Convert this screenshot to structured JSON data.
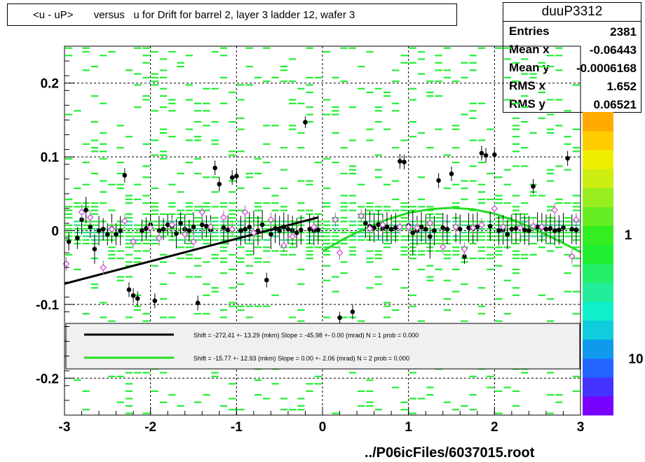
{
  "title": "<u - uP>       versus   u for Drift for barrel 2, layer 3 ladder 12, wafer 3",
  "stats": {
    "name": "duuP3312",
    "rows": [
      {
        "label": "Entries",
        "value": "2381"
      },
      {
        "label": "Mean x",
        "value": "-0.06443"
      },
      {
        "label": "Mean y",
        "value": "-0.0006168"
      },
      {
        "label": "RMS x",
        "value": "1.652"
      },
      {
        "label": "RMS y",
        "value": "0.06521"
      }
    ]
  },
  "footer": "../P06icFiles/6037015.root",
  "colors": {
    "histogram": "#00ee00",
    "fit_black": "#000000",
    "fit_green": "#22dd22",
    "profile_marker": "#000000",
    "open_marker": "#cc44cc"
  },
  "chart_data": {
    "type": "scatter",
    "title": "<u - uP>       versus   u for Drift for barrel 2, layer 3 ladder 12, wafer 3",
    "xlabel": "",
    "ylabel": "",
    "xlim": [
      -3,
      3
    ],
    "ylim": [
      -0.25,
      0.25
    ],
    "x_ticks": [
      "-3",
      "-2",
      "-1",
      "0",
      "1",
      "2",
      "3"
    ],
    "y_ticks": [
      "-0.2",
      "-0.1",
      "0",
      "0.1",
      "0.2"
    ],
    "grid": true,
    "colorbar": {
      "scale": "log",
      "labels": [
        "1",
        "10"
      ]
    },
    "colorbar_stops": [
      "#7700ff",
      "#4433ff",
      "#2266ff",
      "#1199ee",
      "#11ccdd",
      "#11eecc",
      "#22ee99",
      "#22ee66",
      "#22ee33",
      "#33ee22",
      "#66ee22",
      "#99ee22",
      "#ccee11",
      "#eeee00",
      "#ffcc00",
      "#ffaa00"
    ],
    "legend": [
      {
        "text": "Shift =  -272.41 +- 13.29 (mkm) Slope =   -45.98 +- 0.00 (mrad)  N = 1 prob = 0.000",
        "color": "#000000"
      },
      {
        "text": "Shift =   -15.77 +- 12.93 (mkm) Slope =     0.00 +- 2.06 (mrad)  N = 2 prob = 0.000",
        "color": "#22dd22"
      }
    ],
    "fit_lines": [
      {
        "name": "N = 1",
        "x": [
          -3.0,
          -0.05
        ],
        "y": [
          -0.072,
          0.018
        ]
      },
      {
        "name": "N = 2",
        "x": [
          0.0,
          0.25,
          0.5,
          0.75,
          1.0,
          1.25,
          1.5,
          1.75,
          2.0,
          2.25,
          2.5,
          2.75,
          3.0
        ],
        "y": [
          -0.028,
          -0.011,
          0.003,
          0.015,
          0.024,
          0.029,
          0.031,
          0.029,
          0.023,
          0.013,
          0.0,
          -0.014,
          -0.029
        ]
      }
    ],
    "profile_points": {
      "x": [
        -2.95,
        -2.85,
        -2.8,
        -2.75,
        -2.7,
        -2.65,
        -2.6,
        -2.55,
        -2.5,
        -2.45,
        -2.4,
        -2.35,
        -2.3,
        -2.25,
        -2.2,
        -2.15,
        -2.1,
        -2.05,
        -2.0,
        -1.95,
        -1.9,
        -1.85,
        -1.8,
        -1.75,
        -1.7,
        -1.65,
        -1.6,
        -1.55,
        -1.5,
        -1.45,
        -1.4,
        -1.35,
        -1.3,
        -1.25,
        -1.2,
        -1.15,
        -1.1,
        -1.05,
        -1.0,
        -0.95,
        -0.9,
        -0.85,
        -0.8,
        -0.75,
        -0.7,
        -0.65,
        -0.6,
        -0.55,
        -0.5,
        -0.45,
        -0.4,
        -0.35,
        -0.3,
        -0.25,
        -0.2,
        -0.15,
        -0.1,
        -0.05,
        0.2,
        0.35,
        0.5,
        0.55,
        0.6,
        0.65,
        0.7,
        0.75,
        0.8,
        0.85,
        0.9,
        0.95,
        1.0,
        1.05,
        1.1,
        1.15,
        1.2,
        1.25,
        1.3,
        1.35,
        1.4,
        1.45,
        1.5,
        1.55,
        1.6,
        1.65,
        1.7,
        1.75,
        1.8,
        1.85,
        1.9,
        1.95,
        2.0,
        2.05,
        2.1,
        2.15,
        2.2,
        2.25,
        2.3,
        2.35,
        2.4,
        2.45,
        2.5,
        2.55,
        2.6,
        2.65,
        2.7,
        2.75,
        2.8,
        2.85,
        2.9,
        2.95
      ],
      "y": [
        -0.015,
        -0.01,
        0.015,
        0.028,
        0.005,
        -0.025,
        0.0,
        0.002,
        -0.005,
        0.003,
        -0.005,
        0.0,
        0.075,
        -0.08,
        -0.088,
        -0.092,
        0.0,
        0.003,
        0.008,
        -0.095,
        0.0,
        0.002,
        0.008,
        0.006,
        -0.004,
        0.01,
        0.002,
        0.0,
        0.005,
        -0.098,
        0.008,
        0.006,
        0.001,
        0.085,
        0.063,
        0.004,
        0.001,
        0.072,
        0.074,
        0.0,
        0.002,
        0.005,
        -0.003,
        0.0,
        0.008,
        -0.067,
        -0.005,
        0.003,
        0.0,
        0.005,
        0.002,
        0.0,
        -0.003,
        0.001,
        0.147,
        0.002,
        0.0,
        0.001,
        -0.118,
        -0.11,
        0.01,
        0.006,
        0.004,
        0.008,
        0.003,
        0.005,
        0.002,
        0.004,
        0.094,
        0.093,
        0.007,
        -0.003,
        0.0,
        0.005,
        0.002,
        -0.008,
        0.0,
        0.068,
        0.004,
        0.002,
        0.077,
        0.004,
        0.002,
        -0.035,
        0.004,
        0.003,
        0.005,
        0.105,
        0.102,
        0.006,
        0.103,
        0.0,
        0.001,
        -0.005,
        0.002,
        0.003,
        0.004,
        0.001,
        0.0,
        0.06,
        0.005,
        0.004,
        0.002,
        0.003,
        0.0,
        0.001,
        0.004,
        0.098,
        0.002,
        0.001
      ],
      "err": [
        0.012,
        0.015,
        0.02,
        0.018,
        0.015,
        0.02,
        0.02,
        0.015,
        0.015,
        0.02,
        0.015,
        0.02,
        0.01,
        0.01,
        0.01,
        0.01,
        0.015,
        0.015,
        0.015,
        0.01,
        0.02,
        0.015,
        0.015,
        0.015,
        0.02,
        0.015,
        0.02,
        0.015,
        0.02,
        0.01,
        0.02,
        0.015,
        0.02,
        0.01,
        0.01,
        0.02,
        0.02,
        0.01,
        0.01,
        0.02,
        0.02,
        0.02,
        0.03,
        0.02,
        0.02,
        0.01,
        0.02,
        0.02,
        0.02,
        0.02,
        0.02,
        0.02,
        0.02,
        0.02,
        0.008,
        0.02,
        0.02,
        0.02,
        0.008,
        0.01,
        0.02,
        0.02,
        0.02,
        0.02,
        0.02,
        0.02,
        0.02,
        0.02,
        0.01,
        0.01,
        0.02,
        0.03,
        0.02,
        0.02,
        0.02,
        0.03,
        0.02,
        0.01,
        0.02,
        0.02,
        0.01,
        0.02,
        0.02,
        0.01,
        0.02,
        0.02,
        0.02,
        0.01,
        0.01,
        0.02,
        0.01,
        0.02,
        0.02,
        0.02,
        0.02,
        0.02,
        0.02,
        0.02,
        0.02,
        0.01,
        0.02,
        0.02,
        0.02,
        0.02,
        0.02,
        0.02,
        0.02,
        0.01,
        0.02,
        0.02
      ]
    },
    "open_markers": {
      "x": [
        -2.98,
        -2.8,
        -2.7,
        -2.55,
        -2.45,
        -2.3,
        -2.2,
        -2.0,
        -1.9,
        -1.75,
        -1.6,
        -1.5,
        -1.4,
        -1.3,
        -1.15,
        -1.05,
        -0.9,
        -0.8,
        -0.6,
        -0.45,
        -0.35,
        -0.1,
        0.15,
        0.2,
        0.45,
        0.55,
        0.7,
        0.9,
        1.0,
        1.1,
        1.25,
        1.4,
        1.55,
        1.65,
        1.75,
        1.85,
        2.0,
        2.1,
        2.3,
        2.45,
        2.55,
        2.7,
        2.9,
        2.95
      ],
      "y": [
        -0.045,
        0.025,
        0.018,
        -0.05,
        0.002,
        0.013,
        -0.015,
        0.004,
        -0.01,
        0.008,
        -0.005,
        -0.015,
        0.025,
        0.005,
        0.018,
        0.002,
        0.025,
        -0.003,
        0.015,
        -0.02,
        -0.008,
        0.005,
        0.015,
        -0.03,
        0.02,
        0.003,
        0.008,
        0.005,
        0.005,
        0.004,
        0.01,
        -0.022,
        0.005,
        -0.025,
        0.004,
        0.008,
        0.03,
        0.005,
        0.004,
        0.006,
        0.005,
        0.028,
        -0.035,
        0.015
      ]
    },
    "background_cells": {
      "x_bins": 60,
      "y_bins": 100,
      "x_range": [
        -3,
        3
      ],
      "y_range": [
        -0.25,
        0.25
      ],
      "description": "sparse 2D histogram bins shown as short green dashes"
    }
  }
}
